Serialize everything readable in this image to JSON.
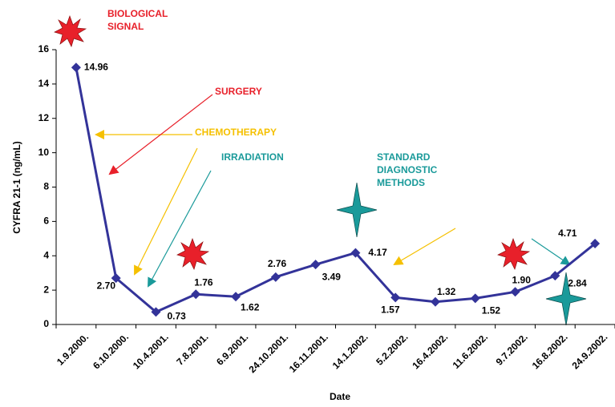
{
  "chart_data": {
    "type": "line",
    "y_label": "CYFRA 21-1 (ng/mL)",
    "x_label": "Date",
    "categories": [
      "1.9.2000.",
      "6.10.2000.",
      "10.4.2001.",
      "7.8.2001.",
      "6.9.2001.",
      "24.10.2001.",
      "16.11.2001.",
      "14.1.2002.",
      "5.2.2002.",
      "16.4.2002.",
      "11.6.2002.",
      "9.7.2002.",
      "16.8.2002.",
      "24.9.2002."
    ],
    "series": [
      {
        "name": "CYFRA 21-1",
        "color": "#333399",
        "values": [
          14.96,
          2.7,
          0.73,
          1.76,
          1.62,
          2.76,
          3.49,
          4.17,
          1.57,
          1.32,
          1.52,
          1.9,
          2.84,
          4.71
        ],
        "value_labels": [
          "14.96",
          "2.70",
          "0.73",
          "1.76",
          "1.62",
          "2.76",
          "3.49",
          "4.17",
          "1.57",
          "1.32",
          "1.52",
          "1.90",
          "2.84",
          "4.71"
        ]
      }
    ],
    "ylim": [
      0,
      16
    ],
    "yticks": [
      0,
      2,
      4,
      6,
      8,
      10,
      12,
      14,
      16
    ],
    "annotations": [
      "BIOLOGICAL",
      "SIGNAL",
      "SURGERY",
      "CHEMOTHERAPY",
      "IRRADIATION",
      "STANDARD",
      "DIAGNOSTIC",
      "METHODS"
    ]
  }
}
